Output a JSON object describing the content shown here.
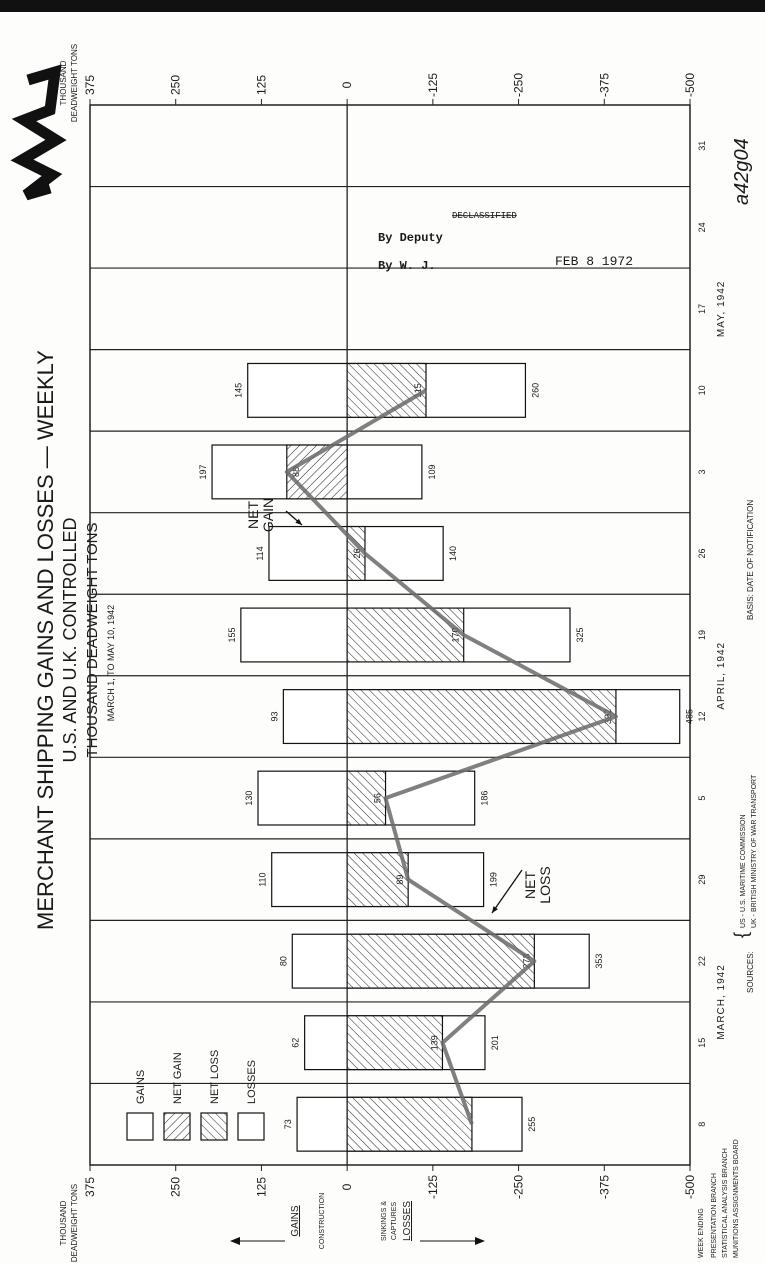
{
  "chart_data": {
    "type": "bar",
    "title": "MERCHANT SHIPPING GAINS AND LOSSES — WEEKLY",
    "subtitle": "U.S. AND U.K. CONTROLLED",
    "units": "THOUSAND DEADWEIGHT TONS",
    "period": "MARCH 1, TO MAY 10, 1942",
    "y_label": [
      "THOUSAND",
      "DEADWEIGHT TONS"
    ],
    "x_label": "WEEK ENDING",
    "categories": [
      "8",
      "15",
      "22",
      "29",
      "5",
      "12",
      "19",
      "26",
      "3",
      "10",
      "17",
      "24",
      "31"
    ],
    "x_groups": [
      "MARCH, 1942",
      "APRIL, 1942",
      "MAY, 1942"
    ],
    "series": [
      {
        "name": "GAINS",
        "color": "#ffffff",
        "values": [
          73,
          62,
          80,
          110,
          130,
          93,
          155,
          114,
          197,
          145,
          null,
          null,
          null
        ]
      },
      {
        "name": "NET GAIN",
        "color": "#333333",
        "hatch": true,
        "values": [
          null,
          null,
          null,
          null,
          null,
          null,
          null,
          null,
          88,
          null,
          null,
          null,
          null
        ]
      },
      {
        "name": "NET LOSS",
        "color": "#333333",
        "hatch": true,
        "values": [
          -182,
          -139,
          -273,
          -89,
          -56,
          -392,
          -170,
          -26,
          null,
          -115,
          null,
          null,
          null
        ],
        "value_labels": [
          null,
          "139",
          "273",
          "89",
          "56",
          "392",
          "170",
          "26",
          null,
          "115",
          null,
          null,
          null
        ]
      },
      {
        "name": "LOSSES",
        "color": "#ffffff",
        "values": [
          -255,
          -201,
          -353,
          -199,
          -186,
          -485,
          -325,
          -140,
          -109,
          -260,
          null,
          null,
          null
        ],
        "value_labels": [
          "255",
          "201",
          "353",
          "199",
          "186",
          "485",
          "325",
          "140",
          "109",
          "260",
          null,
          null,
          null
        ]
      }
    ],
    "net_line_color": "#6a6a6a",
    "ylim": [
      -500,
      375
    ],
    "yticks": [
      375,
      250,
      125,
      0,
      -125,
      -250,
      -375,
      -500
    ],
    "legend": "top-left",
    "annotations": [
      [
        "NET",
        "GAIN"
      ],
      [
        "NET",
        "LOSS"
      ]
    ],
    "side_labels": {
      "gains": "GAINS",
      "gains_source": "CONSTRUCTION",
      "losses_source": [
        "SINKINGS &",
        "CAPTURES"
      ],
      "losses": "LOSSES"
    }
  },
  "sources": {
    "label": "SOURCES:",
    "lines": [
      "US - U.S. MARITIME COMMISSION",
      "UK - BRITISH MINISTRY OF WAR TRANSPORT"
    ]
  },
  "basis": "BASIS: DATE OF NOTIFICATION",
  "credits": [
    "PRESENTATION BRANCH",
    "STATISTICAL ANALYSIS BRANCH",
    "MUNITIONS ASSIGNMENTS BOARD"
  ],
  "stamp": [
    "DECLASSIFIED",
    "By Deputy",
    "By W. J.",
    "FEB 8 1972"
  ],
  "file_mark": "a42g04"
}
